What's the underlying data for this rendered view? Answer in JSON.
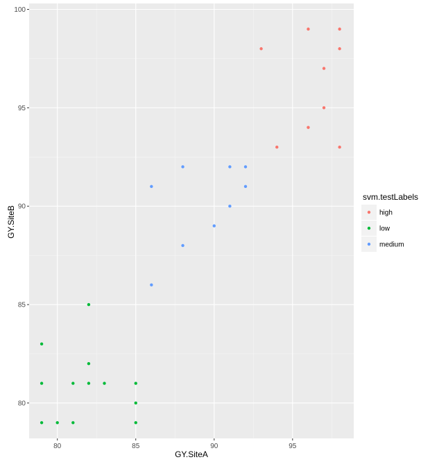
{
  "chart_data": {
    "type": "scatter",
    "title": "",
    "xlabel": "GY.SiteA",
    "ylabel": "GY.SiteB",
    "xlim": [
      78.2,
      98.9
    ],
    "ylim": [
      78.2,
      100.3
    ],
    "x_ticks": [
      80,
      85,
      90,
      95
    ],
    "y_ticks": [
      80,
      85,
      90,
      95,
      100
    ],
    "x_tick_labels": [
      "80",
      "85",
      "90",
      "95"
    ],
    "y_tick_labels": [
      "80",
      "85",
      "90",
      "95",
      "100"
    ],
    "grid": true,
    "legend_position": "right",
    "legend_title": "svm.testLabels",
    "series": [
      {
        "name": "high",
        "color": "#F8766D",
        "points": [
          [
            93,
            98
          ],
          [
            96,
            99
          ],
          [
            98,
            99
          ],
          [
            98,
            98
          ],
          [
            97,
            97
          ],
          [
            97,
            95
          ],
          [
            96,
            94
          ],
          [
            94,
            93
          ],
          [
            98,
            93
          ]
        ]
      },
      {
        "name": "low",
        "color": "#00BA38",
        "points": [
          [
            79,
            83
          ],
          [
            79,
            81
          ],
          [
            79,
            79
          ],
          [
            80,
            79
          ],
          [
            81,
            79
          ],
          [
            81,
            81
          ],
          [
            82,
            85
          ],
          [
            82,
            82
          ],
          [
            82,
            81
          ],
          [
            83,
            81
          ],
          [
            85,
            81
          ],
          [
            85,
            80
          ],
          [
            85,
            79
          ]
        ]
      },
      {
        "name": "medium",
        "color": "#619CFF",
        "points": [
          [
            86,
            91
          ],
          [
            86,
            86
          ],
          [
            88,
            92
          ],
          [
            88,
            88
          ],
          [
            90,
            89
          ],
          [
            91,
            92
          ],
          [
            91,
            90
          ],
          [
            92,
            92
          ],
          [
            92,
            91
          ]
        ]
      }
    ]
  },
  "colors": {
    "panel_background": "#EBEBEB",
    "grid_major": "#FFFFFF",
    "legend_key_background": "#F2F2F2"
  }
}
